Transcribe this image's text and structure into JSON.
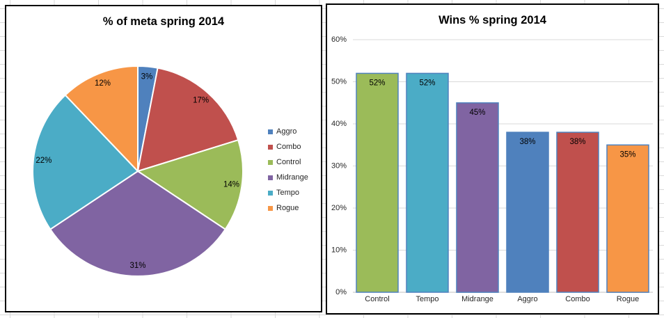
{
  "ui": {
    "spreadsheet_grid_color": "#D9D9D9",
    "panel_border_color": "#000000",
    "panel_background": "#FFFFFF",
    "title_color": "#000000"
  },
  "chart_data": [
    {
      "type": "pie",
      "title": "% of meta spring 2014",
      "categories": [
        "Aggro",
        "Combo",
        "Control",
        "Midrange",
        "Tempo",
        "Rogue"
      ],
      "values": [
        3,
        17,
        14,
        31,
        22,
        12
      ],
      "labels": [
        "3%",
        "17%",
        "14%",
        "31%",
        "22%",
        "12%"
      ],
      "colors": [
        "#4F81BD",
        "#C0504D",
        "#9BBB59",
        "#8064A2",
        "#4BACC6",
        "#F79646"
      ],
      "slice_border_color": "#FFFFFF",
      "label_color": "#000000",
      "start_angle_deg": 0,
      "direction": "clockwise",
      "legend": {
        "position": "right",
        "entries": [
          "Aggro",
          "Combo",
          "Control",
          "Midrange",
          "Tempo",
          "Rogue"
        ]
      }
    },
    {
      "type": "bar",
      "title": "Wins % spring 2014",
      "categories": [
        "Control",
        "Tempo",
        "Midrange",
        "Aggro",
        "Combo",
        "Rogue"
      ],
      "values": [
        52,
        52,
        45,
        38,
        38,
        35
      ],
      "labels": [
        "52%",
        "52%",
        "45%",
        "38%",
        "38%",
        "35%"
      ],
      "colors": [
        "#9BBB59",
        "#4BACC6",
        "#8064A2",
        "#4F81BD",
        "#C0504D",
        "#F79646"
      ],
      "bar_border_color": "#4F81BD",
      "ylim": [
        0,
        60
      ],
      "ytick_step": 10,
      "ytick_labels": [
        "0%",
        "10%",
        "20%",
        "30%",
        "40%",
        "50%",
        "60%"
      ],
      "grid": true,
      "gridline_color": "#D9D9D9",
      "axis_line_color": "#BFBFBF",
      "tick_label_color": "#262626",
      "data_label_position": "inside-end",
      "legend": {
        "position": "none"
      }
    }
  ]
}
